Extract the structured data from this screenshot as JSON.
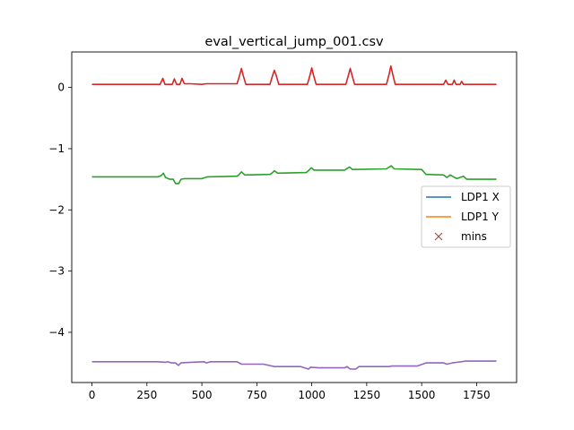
{
  "chart_data": {
    "type": "line",
    "title": "eval_vertical_jump_001.csv",
    "xlabel": "",
    "ylabel": "",
    "xlim": [
      -92,
      1932
    ],
    "ylim": [
      -4.82,
      0.58
    ],
    "xticks": [
      0,
      250,
      500,
      750,
      1000,
      1250,
      1500,
      1750
    ],
    "xtick_labels": [
      "0",
      "250",
      "500",
      "750",
      "1000",
      "1250",
      "1500",
      "1750"
    ],
    "yticks": [
      0,
      -1,
      -2,
      -3,
      -4
    ],
    "ytick_labels": [
      "0",
      "−1",
      "−2",
      "−3",
      "−4"
    ],
    "grid": false,
    "legend": {
      "placement": "center-right",
      "entries": [
        {
          "label": "LDP1 X",
          "marker": "line",
          "color": "#1f77b4"
        },
        {
          "label": "LDP1 Y",
          "marker": "line",
          "color": "#ff7f0e"
        },
        {
          "label": "mins",
          "marker": "x",
          "color": "#8c564b"
        }
      ]
    },
    "series": [
      {
        "color": "#d62728",
        "points": [
          [
            0,
            0.05
          ],
          [
            310,
            0.05
          ],
          [
            322,
            0.15
          ],
          [
            332,
            0.05
          ],
          [
            365,
            0.05
          ],
          [
            375,
            0.14
          ],
          [
            385,
            0.05
          ],
          [
            400,
            0.05
          ],
          [
            410,
            0.15
          ],
          [
            420,
            0.06
          ],
          [
            450,
            0.06
          ],
          [
            500,
            0.05
          ],
          [
            520,
            0.06
          ],
          [
            660,
            0.06
          ],
          [
            672,
            0.2
          ],
          [
            680,
            0.31
          ],
          [
            688,
            0.2
          ],
          [
            700,
            0.05
          ],
          [
            810,
            0.05
          ],
          [
            822,
            0.2
          ],
          [
            830,
            0.28
          ],
          [
            838,
            0.2
          ],
          [
            850,
            0.05
          ],
          [
            980,
            0.05
          ],
          [
            992,
            0.2
          ],
          [
            1000,
            0.32
          ],
          [
            1008,
            0.2
          ],
          [
            1020,
            0.05
          ],
          [
            1155,
            0.05
          ],
          [
            1167,
            0.2
          ],
          [
            1175,
            0.31
          ],
          [
            1183,
            0.2
          ],
          [
            1195,
            0.05
          ],
          [
            1340,
            0.05
          ],
          [
            1352,
            0.22
          ],
          [
            1360,
            0.35
          ],
          [
            1368,
            0.22
          ],
          [
            1380,
            0.05
          ],
          [
            1500,
            0.05
          ],
          [
            1600,
            0.05
          ],
          [
            1610,
            0.12
          ],
          [
            1620,
            0.05
          ],
          [
            1640,
            0.05
          ],
          [
            1648,
            0.12
          ],
          [
            1656,
            0.05
          ],
          [
            1675,
            0.05
          ],
          [
            1682,
            0.1
          ],
          [
            1690,
            0.05
          ],
          [
            1840,
            0.05
          ]
        ]
      },
      {
        "color": "#2ca02c",
        "points": [
          [
            0,
            -1.46
          ],
          [
            300,
            -1.46
          ],
          [
            315,
            -1.44
          ],
          [
            325,
            -1.4
          ],
          [
            335,
            -1.47
          ],
          [
            355,
            -1.5
          ],
          [
            370,
            -1.5
          ],
          [
            380,
            -1.57
          ],
          [
            395,
            -1.57
          ],
          [
            405,
            -1.5
          ],
          [
            420,
            -1.49
          ],
          [
            500,
            -1.49
          ],
          [
            525,
            -1.46
          ],
          [
            660,
            -1.45
          ],
          [
            670,
            -1.42
          ],
          [
            680,
            -1.38
          ],
          [
            695,
            -1.43
          ],
          [
            810,
            -1.42
          ],
          [
            822,
            -1.39
          ],
          [
            830,
            -1.36
          ],
          [
            845,
            -1.4
          ],
          [
            975,
            -1.39
          ],
          [
            988,
            -1.35
          ],
          [
            998,
            -1.31
          ],
          [
            1010,
            -1.35
          ],
          [
            1150,
            -1.35
          ],
          [
            1162,
            -1.32
          ],
          [
            1172,
            -1.3
          ],
          [
            1185,
            -1.34
          ],
          [
            1340,
            -1.33
          ],
          [
            1352,
            -1.3
          ],
          [
            1362,
            -1.28
          ],
          [
            1375,
            -1.33
          ],
          [
            1500,
            -1.34
          ],
          [
            1520,
            -1.42
          ],
          [
            1600,
            -1.43
          ],
          [
            1615,
            -1.47
          ],
          [
            1630,
            -1.43
          ],
          [
            1660,
            -1.49
          ],
          [
            1690,
            -1.45
          ],
          [
            1705,
            -1.5
          ],
          [
            1840,
            -1.5
          ]
        ]
      },
      {
        "color": "#9467bd",
        "points": [
          [
            0,
            -4.48
          ],
          [
            300,
            -4.48
          ],
          [
            335,
            -4.49
          ],
          [
            345,
            -4.48
          ],
          [
            360,
            -4.5
          ],
          [
            380,
            -4.5
          ],
          [
            393,
            -4.54
          ],
          [
            405,
            -4.5
          ],
          [
            450,
            -4.49
          ],
          [
            510,
            -4.48
          ],
          [
            520,
            -4.5
          ],
          [
            540,
            -4.48
          ],
          [
            660,
            -4.48
          ],
          [
            680,
            -4.52
          ],
          [
            780,
            -4.52
          ],
          [
            830,
            -4.56
          ],
          [
            950,
            -4.56
          ],
          [
            985,
            -4.6
          ],
          [
            995,
            -4.57
          ],
          [
            1030,
            -4.58
          ],
          [
            1150,
            -4.58
          ],
          [
            1160,
            -4.56
          ],
          [
            1175,
            -4.6
          ],
          [
            1200,
            -4.6
          ],
          [
            1215,
            -4.56
          ],
          [
            1350,
            -4.56
          ],
          [
            1365,
            -4.55
          ],
          [
            1480,
            -4.55
          ],
          [
            1520,
            -4.5
          ],
          [
            1600,
            -4.5
          ],
          [
            1615,
            -4.52
          ],
          [
            1640,
            -4.5
          ],
          [
            1680,
            -4.48
          ],
          [
            1700,
            -4.47
          ],
          [
            1840,
            -4.47
          ]
        ]
      }
    ]
  }
}
